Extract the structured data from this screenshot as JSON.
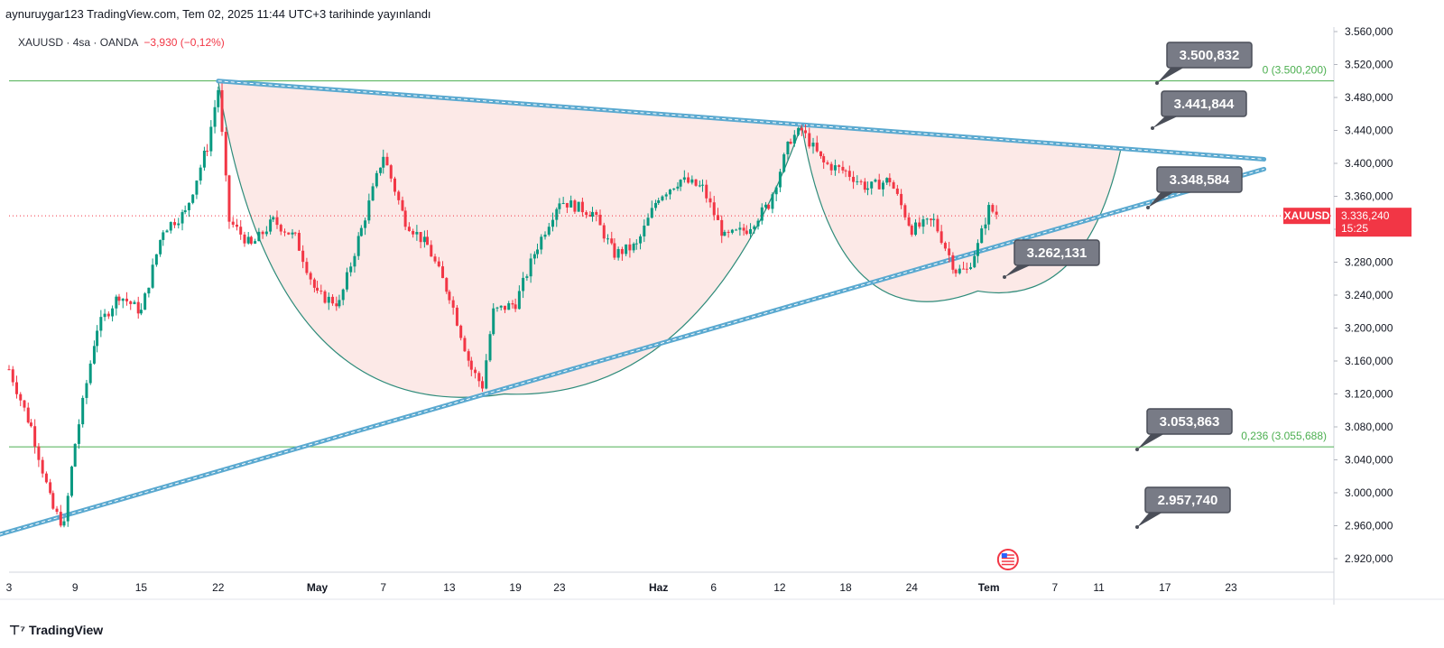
{
  "header": {
    "published_text": "aynuruygar123 TradingView.com, Tem 02, 2025 11:44 UTC+3 tarihinde yayınlandı"
  },
  "symbol": {
    "name": "XAUUSD",
    "interval": "4sa",
    "exchange": "OANDA",
    "change": "−3,930 (−0,12%)"
  },
  "current_price": {
    "label": "XAUUSD",
    "value": "3.336,240",
    "countdown": "15:25"
  },
  "footer": {
    "brand": "TradingView"
  },
  "colors": {
    "up": "#089981",
    "down": "#f23645",
    "trendline": "#5aa9d0",
    "fib": "#4caf50",
    "pattern_fill": "#fbe1df",
    "arc": "#2e8b7a",
    "callout_bg": "#787b86",
    "price_tag": "#f23645"
  },
  "chart_data": {
    "type": "candlestick",
    "y_axis": {
      "range": [
        2900,
        3570
      ],
      "tick_labels": [
        "3.560,000",
        "3.520,000",
        "3.480,000",
        "3.440,000",
        "3.400,000",
        "3.360,000",
        "3.320,000",
        "3.280,000",
        "3.240,000",
        "3.200,000",
        "3.160,000",
        "3.120,000",
        "3.080,000",
        "3.040,000",
        "3.000,000",
        "2.960,000",
        "2.920,000"
      ],
      "tick_values": [
        3560,
        3520,
        3480,
        3440,
        3400,
        3360,
        3320,
        3280,
        3240,
        3200,
        3160,
        3120,
        3080,
        3040,
        3000,
        2960,
        2920
      ]
    },
    "x_axis": {
      "tick_labels": [
        "3",
        "9",
        "15",
        "22",
        "May",
        "7",
        "13",
        "19",
        "23",
        "Haz",
        "6",
        "12",
        "18",
        "24",
        "Tem",
        "7",
        "11",
        "17",
        "23"
      ],
      "bold_labels": [
        "May",
        "Haz",
        "Tem"
      ],
      "tick_dates": [
        "2025-04-03",
        "2025-04-09",
        "2025-04-15",
        "2025-04-22",
        "2025-05-01",
        "2025-05-07",
        "2025-05-13",
        "2025-05-19",
        "2025-05-23",
        "2025-06-01",
        "2025-06-06",
        "2025-06-12",
        "2025-06-18",
        "2025-06-24",
        "2025-07-01",
        "2025-07-07",
        "2025-07-11",
        "2025-07-17",
        "2025-07-23"
      ]
    },
    "price_points": [
      {
        "date": "2025-04-03",
        "price": 3150
      },
      {
        "date": "2025-04-05",
        "price": 3080
      },
      {
        "date": "2025-04-07",
        "price": 2980
      },
      {
        "date": "2025-04-08",
        "price": 2960
      },
      {
        "date": "2025-04-09",
        "price": 3060
      },
      {
        "date": "2025-04-11",
        "price": 3200
      },
      {
        "date": "2025-04-13",
        "price": 3240
      },
      {
        "date": "2025-04-15",
        "price": 3220
      },
      {
        "date": "2025-04-17",
        "price": 3320
      },
      {
        "date": "2025-04-19",
        "price": 3340
      },
      {
        "date": "2025-04-21",
        "price": 3420
      },
      {
        "date": "2025-04-22",
        "price": 3490
      },
      {
        "date": "2025-04-23",
        "price": 3330
      },
      {
        "date": "2025-04-25",
        "price": 3300
      },
      {
        "date": "2025-04-27",
        "price": 3330
      },
      {
        "date": "2025-04-29",
        "price": 3310
      },
      {
        "date": "2025-05-01",
        "price": 3240
      },
      {
        "date": "2025-05-03",
        "price": 3230
      },
      {
        "date": "2025-05-05",
        "price": 3320
      },
      {
        "date": "2025-05-07",
        "price": 3410
      },
      {
        "date": "2025-05-09",
        "price": 3330
      },
      {
        "date": "2025-05-11",
        "price": 3300
      },
      {
        "date": "2025-05-13",
        "price": 3240
      },
      {
        "date": "2025-05-15",
        "price": 3150
      },
      {
        "date": "2025-05-16",
        "price": 3130
      },
      {
        "date": "2025-05-17",
        "price": 3220
      },
      {
        "date": "2025-05-19",
        "price": 3230
      },
      {
        "date": "2025-05-21",
        "price": 3300
      },
      {
        "date": "2025-05-23",
        "price": 3355
      },
      {
        "date": "2025-05-26",
        "price": 3340
      },
      {
        "date": "2025-05-28",
        "price": 3290
      },
      {
        "date": "2025-05-30",
        "price": 3300
      },
      {
        "date": "2025-06-01",
        "price": 3360
      },
      {
        "date": "2025-06-03",
        "price": 3380
      },
      {
        "date": "2025-06-05",
        "price": 3370
      },
      {
        "date": "2025-06-07",
        "price": 3310
      },
      {
        "date": "2025-06-09",
        "price": 3320
      },
      {
        "date": "2025-06-11",
        "price": 3350
      },
      {
        "date": "2025-06-13",
        "price": 3430
      },
      {
        "date": "2025-06-14",
        "price": 3440
      },
      {
        "date": "2025-06-16",
        "price": 3400
      },
      {
        "date": "2025-06-18",
        "price": 3390
      },
      {
        "date": "2025-06-20",
        "price": 3370
      },
      {
        "date": "2025-06-22",
        "price": 3380
      },
      {
        "date": "2025-06-24",
        "price": 3320
      },
      {
        "date": "2025-06-26",
        "price": 3330
      },
      {
        "date": "2025-06-28",
        "price": 3270
      },
      {
        "date": "2025-06-29",
        "price": 3270
      },
      {
        "date": "2025-06-30",
        "price": 3300
      },
      {
        "date": "2025-07-01",
        "price": 3345
      },
      {
        "date": "2025-07-02",
        "price": 3336
      }
    ],
    "horizontal_levels": [
      {
        "label": "0 (3.500,200)",
        "value": 3500.2
      },
      {
        "label": "0,236 (3.055,688)",
        "value": 3055.688
      }
    ],
    "last_price": 3336.24,
    "trendlines": [
      {
        "name": "upper",
        "from": {
          "date": "2025-04-22",
          "price": 3500
        },
        "to": {
          "date": "2025-07-26",
          "price": 3405
        }
      },
      {
        "name": "lower",
        "from": {
          "date": "2025-04-01",
          "price": 2945
        },
        "to": {
          "date": "2025-07-26",
          "price": 3393
        }
      }
    ],
    "callouts": [
      {
        "text": "3.500,832",
        "value": 3500.832
      },
      {
        "text": "3.441,844",
        "value": 3441.844
      },
      {
        "text": "3.348,584",
        "value": 3348.584
      },
      {
        "text": "3.262,131",
        "value": 3262.131
      },
      {
        "text": "3.053,863",
        "value": 3053.863
      },
      {
        "text": "2.957,740",
        "value": 2957.74
      }
    ]
  }
}
